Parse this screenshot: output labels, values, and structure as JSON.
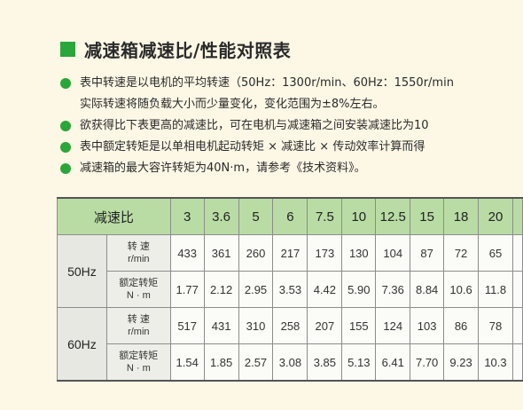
{
  "title": "减速箱减速比/性能对照表",
  "notes": [
    {
      "bullet": true,
      "text": "表中转速是以电机的平均转速（50Hz：1300r/min、60Hz：1550r/min"
    },
    {
      "bullet": false,
      "text": "实际转速将随负载大小而少量变化，变化范围为±8%左右。"
    },
    {
      "bullet": true,
      "text": "欲获得比下表更高的减速比，可在电机与减速箱之间安装减速比为10"
    },
    {
      "bullet": true,
      "text": "表中额定转矩是以单相电机起动转矩 × 减速比 × 传动效率计算而得"
    },
    {
      "bullet": true,
      "text": "减速箱的最大容许转矩为40N·m，请参考《技术资料》。"
    }
  ],
  "table": {
    "header_label": "减速比",
    "ratios": [
      "3",
      "3.6",
      "5",
      "6",
      "7.5",
      "10",
      "12.5",
      "15",
      "18",
      "20",
      ""
    ],
    "groups": [
      {
        "freq": "50Hz",
        "rows": [
          {
            "label_line1": "转 速",
            "label_line2": "r/min",
            "values": [
              "433",
              "361",
              "260",
              "217",
              "173",
              "130",
              "104",
              "87",
              "72",
              "65",
              ""
            ]
          },
          {
            "label_line1": "额定转矩",
            "label_line2": "N · m",
            "values": [
              "1.77",
              "2.12",
              "2.95",
              "3.53",
              "4.42",
              "5.90",
              "7.36",
              "8.84",
              "10.6",
              "11.8",
              ""
            ]
          }
        ]
      },
      {
        "freq": "60Hz",
        "rows": [
          {
            "label_line1": "转 速",
            "label_line2": "r/min",
            "values": [
              "517",
              "431",
              "310",
              "258",
              "207",
              "155",
              "124",
              "103",
              "86",
              "78",
              ""
            ]
          },
          {
            "label_line1": "额定转矩",
            "label_line2": "N · m",
            "values": [
              "1.54",
              "1.85",
              "2.57",
              "3.08",
              "3.85",
              "5.13",
              "6.41",
              "7.70",
              "9.23",
              "10.3",
              ""
            ]
          }
        ]
      }
    ]
  },
  "colors": {
    "accent_green": "#2aa63a",
    "header_bg": "#b9dca4",
    "page_bg": "#fdf8e6"
  }
}
